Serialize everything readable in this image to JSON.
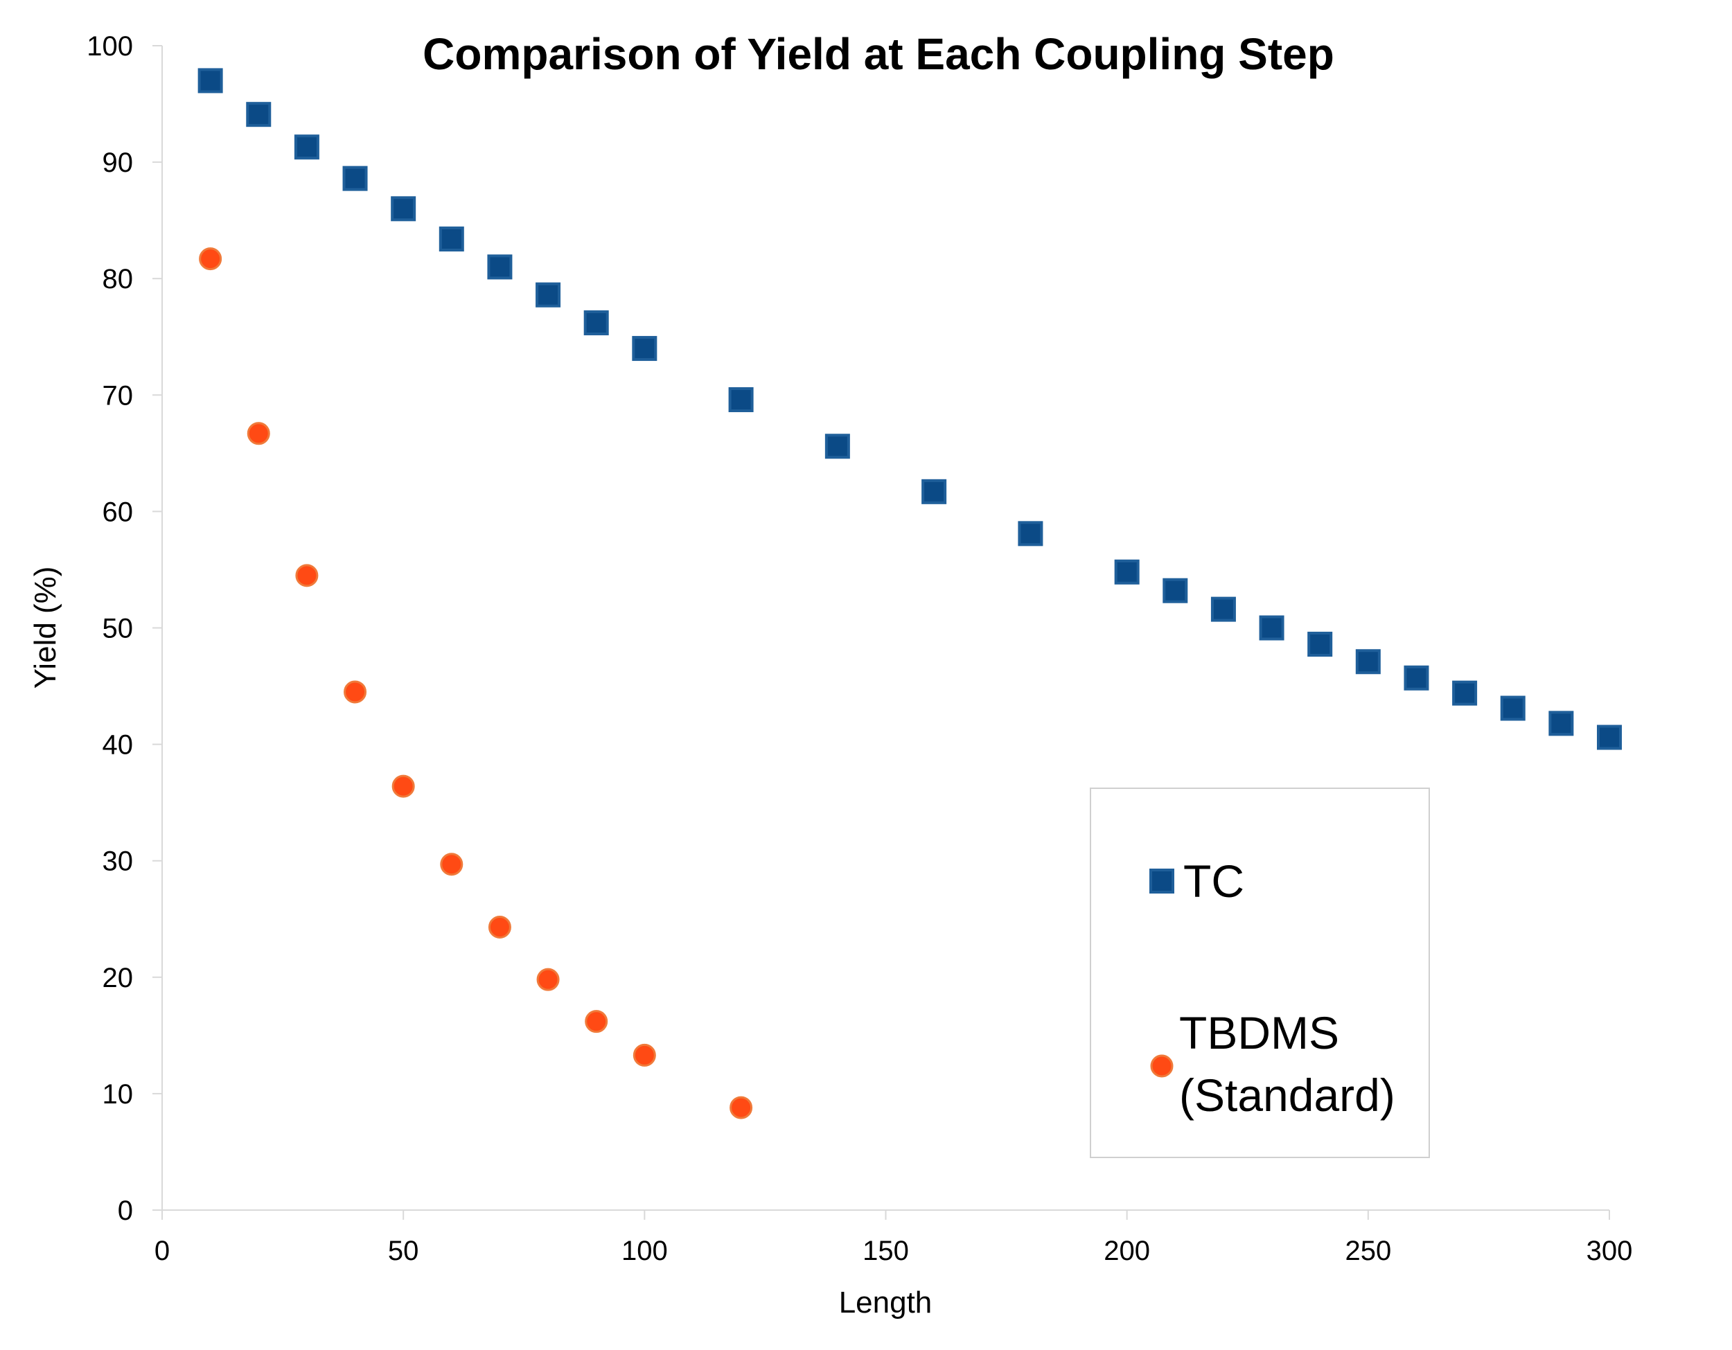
{
  "chart_data": {
    "type": "scatter",
    "title": "Comparison of Yield at Each Coupling Step",
    "xlabel": "Length",
    "ylabel": "Yield (%)",
    "xlim": [
      0,
      300
    ],
    "ylim": [
      0,
      100
    ],
    "xticks": [
      0,
      50,
      100,
      150,
      200,
      250,
      300
    ],
    "yticks": [
      0,
      10,
      20,
      30,
      40,
      50,
      60,
      70,
      80,
      90,
      100
    ],
    "grid": false,
    "legend_position": "bottom-right",
    "series": [
      {
        "name": "TC",
        "marker": "square",
        "color": "#0b4a86",
        "edge_color": "#1f5f9a",
        "points": [
          {
            "x": 10,
            "y": 97.0
          },
          {
            "x": 20,
            "y": 94.1
          },
          {
            "x": 30,
            "y": 91.3
          },
          {
            "x": 40,
            "y": 88.6
          },
          {
            "x": 50,
            "y": 86.0
          },
          {
            "x": 60,
            "y": 83.4
          },
          {
            "x": 70,
            "y": 81.0
          },
          {
            "x": 80,
            "y": 78.6
          },
          {
            "x": 90,
            "y": 76.2
          },
          {
            "x": 100,
            "y": 74.0
          },
          {
            "x": 120,
            "y": 69.6
          },
          {
            "x": 140,
            "y": 65.6
          },
          {
            "x": 160,
            "y": 61.7
          },
          {
            "x": 180,
            "y": 58.1
          },
          {
            "x": 200,
            "y": 54.8
          },
          {
            "x": 210,
            "y": 53.2
          },
          {
            "x": 220,
            "y": 51.6
          },
          {
            "x": 230,
            "y": 50.0
          },
          {
            "x": 240,
            "y": 48.6
          },
          {
            "x": 250,
            "y": 47.1
          },
          {
            "x": 260,
            "y": 45.7
          },
          {
            "x": 270,
            "y": 44.4
          },
          {
            "x": 280,
            "y": 43.1
          },
          {
            "x": 290,
            "y": 41.8
          },
          {
            "x": 300,
            "y": 40.6
          }
        ]
      },
      {
        "name": "TBDMS (Standard)",
        "name_lines": [
          "TBDMS",
          "(Standard)"
        ],
        "marker": "circle",
        "color": "#ff4a14",
        "edge_color": "#f07a3a",
        "points": [
          {
            "x": 10,
            "y": 81.7
          },
          {
            "x": 20,
            "y": 66.7
          },
          {
            "x": 30,
            "y": 54.5
          },
          {
            "x": 40,
            "y": 44.5
          },
          {
            "x": 50,
            "y": 36.4
          },
          {
            "x": 60,
            "y": 29.7
          },
          {
            "x": 70,
            "y": 24.3
          },
          {
            "x": 80,
            "y": 19.8
          },
          {
            "x": 90,
            "y": 16.2
          },
          {
            "x": 100,
            "y": 13.3
          },
          {
            "x": 120,
            "y": 8.8
          }
        ]
      }
    ]
  }
}
